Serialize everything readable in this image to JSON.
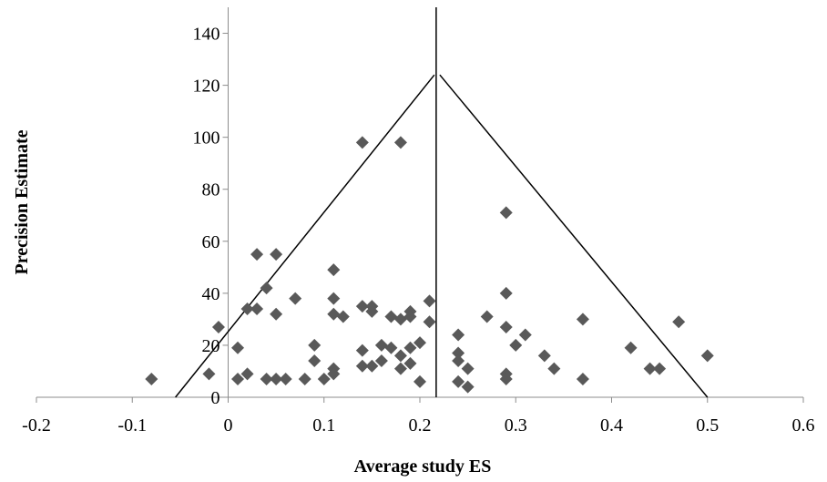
{
  "chart_data": {
    "type": "scatter",
    "title": "",
    "xlabel": "Average study ES",
    "ylabel": "Precision Estimate",
    "xlim": [
      -0.2,
      0.6
    ],
    "ylim": [
      0,
      150
    ],
    "xticks": [
      -0.2,
      -0.1,
      0,
      0.1,
      0.2,
      0.3,
      0.4,
      0.5,
      0.6
    ],
    "xtick_labels": [
      "-0.2",
      "-0.1",
      "0",
      "0.1",
      "0.2",
      "0.3",
      "0.4",
      "0.5",
      "0.6"
    ],
    "yticks": [
      0,
      20,
      40,
      60,
      80,
      100,
      120,
      140
    ],
    "ytick_labels": [
      "0",
      "20",
      "40",
      "60",
      "80",
      "100",
      "120",
      "140"
    ],
    "grid": false,
    "legend": "none",
    "marker": "diamond",
    "marker_color": "#595959",
    "line_color": "#000000",
    "mean_line": {
      "x": 0.217
    },
    "funnel": {
      "apex": [
        0.217,
        124
      ],
      "left_base": [
        -0.055,
        0
      ],
      "right_base": [
        0.5,
        0
      ]
    },
    "points": [
      [
        -0.08,
        7
      ],
      [
        -0.02,
        9
      ],
      [
        -0.01,
        27
      ],
      [
        0.01,
        19
      ],
      [
        0.01,
        7
      ],
      [
        0.02,
        9
      ],
      [
        0.02,
        34
      ],
      [
        0.03,
        34
      ],
      [
        0.03,
        55
      ],
      [
        0.04,
        42
      ],
      [
        0.04,
        7
      ],
      [
        0.05,
        55
      ],
      [
        0.05,
        32
      ],
      [
        0.05,
        7
      ],
      [
        0.06,
        7
      ],
      [
        0.07,
        38
      ],
      [
        0.08,
        7
      ],
      [
        0.09,
        20
      ],
      [
        0.09,
        14
      ],
      [
        0.1,
        7
      ],
      [
        0.11,
        11
      ],
      [
        0.11,
        9
      ],
      [
        0.11,
        38
      ],
      [
        0.11,
        49
      ],
      [
        0.11,
        32
      ],
      [
        0.12,
        31
      ],
      [
        0.14,
        98
      ],
      [
        0.14,
        35
      ],
      [
        0.14,
        18
      ],
      [
        0.14,
        12
      ],
      [
        0.15,
        35
      ],
      [
        0.15,
        33
      ],
      [
        0.15,
        12
      ],
      [
        0.16,
        20
      ],
      [
        0.16,
        14
      ],
      [
        0.17,
        31
      ],
      [
        0.17,
        19
      ],
      [
        0.18,
        98
      ],
      [
        0.18,
        30
      ],
      [
        0.18,
        16
      ],
      [
        0.18,
        11
      ],
      [
        0.19,
        33
      ],
      [
        0.19,
        31
      ],
      [
        0.19,
        19
      ],
      [
        0.19,
        13
      ],
      [
        0.2,
        21
      ],
      [
        0.2,
        6
      ],
      [
        0.21,
        37
      ],
      [
        0.21,
        29
      ],
      [
        0.24,
        24
      ],
      [
        0.24,
        17
      ],
      [
        0.24,
        14
      ],
      [
        0.24,
        6
      ],
      [
        0.25,
        11
      ],
      [
        0.25,
        4
      ],
      [
        0.27,
        31
      ],
      [
        0.29,
        71
      ],
      [
        0.29,
        40
      ],
      [
        0.29,
        27
      ],
      [
        0.29,
        9
      ],
      [
        0.29,
        7
      ],
      [
        0.3,
        20
      ],
      [
        0.31,
        24
      ],
      [
        0.33,
        16
      ],
      [
        0.34,
        11
      ],
      [
        0.37,
        30
      ],
      [
        0.37,
        7
      ],
      [
        0.42,
        19
      ],
      [
        0.44,
        11
      ],
      [
        0.45,
        11
      ],
      [
        0.47,
        29
      ],
      [
        0.5,
        16
      ]
    ]
  }
}
